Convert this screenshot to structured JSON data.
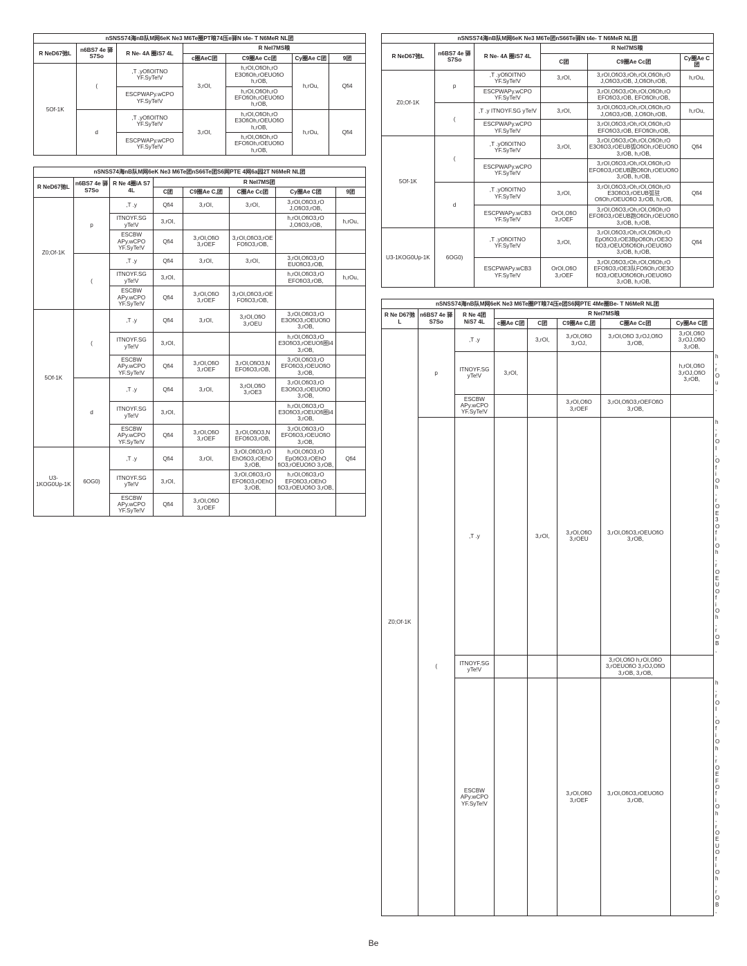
{
  "page_number": "Be",
  "colors": {
    "ink": "#231f20",
    "paper": "#ffffff"
  },
  "tables": {
    "t1": {
      "title": "nSNSS74海nB队M网6eK Ne3 M6Te圈PT㫰74压e驿N t4e- T N6MeR  NL团",
      "cols": [
        "R NeD67弛L",
        "n6BS7 4e\n驿S7So",
        "R Ne- 4A\n圈iS7 4L",
        "R  NeI7MS㫰"
      ],
      "sub": [
        "c圈AeC团",
        "C9圈Ae Cc团",
        "Cy圈Ae C团",
        "9团"
      ],
      "rows": [
        {
          "k": "5Of-1K",
          "g": "(",
          "cells": [
            [
              ",T .yOfiOITNO\nYF.SyTe!V",
              "3,rOI,",
              "h,rOI,OfiOh,rO E3OfiOh,rOEUOfiO\nh,rOB,",
              "h,rOu,",
              "Qfi4"
            ],
            [
              "ESCPWAPy.wCPO\nYF.SyTe!V",
              "",
              "h,rOI,OfiOh,rO EFOfiOh,rOEUOfiO\nh,rOB,",
              "",
              ""
            ]
          ]
        },
        {
          "k": "",
          "g": "d",
          "cells": [
            [
              ",T .yOfiOITNO\nYF.SyTe!V",
              "3,rOI,",
              "h,rOI,OfiOh,rO E3OfiOh,rOEUOfiO\nh,rOB,",
              "h,rOu,",
              "Qfi4"
            ],
            [
              "ESCPWAPy.wCPO\nYF.SyTe!V",
              "",
              "h,rOI,OfiOh,rO EFOfiOh,rOEUOfiO\nh,rOB,",
              "",
              ""
            ]
          ]
        }
      ]
    },
    "t2": {
      "title": "nSNSS74海nB队M网6eK Ne3 M6Te团nS66Te团S6网PTE 4网6a园2T N6MeR  NL团",
      "hdr": [
        "R NeD67弛L",
        "n6BS7 4e\n驿S7So",
        "R Ne\n4圈iA S7 4L",
        "R  NeI7MS团"
      ],
      "sub": [
        "C团",
        "C9圈Ae C,团",
        "C圈Ae Cc团",
        "Cy圈Ae C团",
        "9团"
      ],
      "groups": [
        {
          "k": "Z0;Of-1K",
          "g": "p",
          "rows": [
            [
              ",T .y",
              "Qfi4",
              "3,rOI,",
              "3,rOI,",
              "3,rOI,OfiO3,rO J,OfiO3,rOB,",
              ""
            ],
            [
              "ITNOYF.SG\nyTe!V",
              "3,rOI,",
              "",
              "",
              "h,rOI,OfiO3,rO J,OfiO3,rOB,",
              "h,rOu,"
            ],
            [
              "ESCBW\nAPy.wCPO\nYF.SyTe!V",
              "Qfi4",
              "3,rOI,OfiO 3,rOEF",
              "3,rOI,OfiO3,rOEFOfiO3,rOB,",
              "",
              ""
            ]
          ]
        },
        {
          "k": "",
          "g": "(",
          "rows": [
            [
              ",T .y",
              "Qfi4",
              "3,rOI,",
              "3,rOI,",
              "3,rOI,OfiO3,rO EUOfiO3,rOB,",
              ""
            ],
            [
              "ITNOYF.SG\nyTe!V",
              "3,rOI,",
              "",
              "",
              "h,rOI,OfiO3,rO EFOfiO3,rOB,",
              "h,rOu,"
            ],
            [
              "ESCBW\nAPy.wCPO\nYF.SyTe!V",
              "Qfi4",
              "3,rOI,OfiO 3,rOEF",
              "3,rOI,OfiO3,rOEFOfiO3,rOB,",
              "",
              ""
            ]
          ]
        },
        {
          "k": "5Of-1K",
          "g": "(",
          "rows": [
            [
              ",T .y",
              "Qfi4",
              "3,rOI,",
              "3,rOI,OfiO 3,rOEU",
              "3,rOI,OfiO3,rO E3OfiO3,rOEUOfiO\n3,rOB,",
              ""
            ],
            [
              "ITNOYF.SG\nyTe!V",
              "3,rOI,",
              "",
              "",
              "h,rOI,OfiO3,rO E3OfiO3,rOEUOfi圈i4\n3,rOB,",
              ""
            ],
            [
              "ESCBW\nAPy.wCPO\nYF.SyTe!V",
              "Qfi4",
              "3,rOI,OfiO 3,rOEF",
              "3,rOI,OfiO3,N EFOfiO3,rOB,",
              "3,rOI,OfiO3,rO EFOfiO3,rOEUOfiO\n3,rOB,",
              ""
            ]
          ]
        },
        {
          "k": "",
          "g": "d",
          "rows": [
            [
              ",T .y",
              "Qfi4",
              "3,rOI,",
              "3,rOI,OfiO 3,rOE3",
              "3,rOI,OfiO3,rO E3OfiO3,rOEUOfiO\n3,rOB,",
              ""
            ],
            [
              "ITNOYF.SG\nyTe!V",
              "3,rOI,",
              "",
              "",
              "h,rOI,OfiO3,rO E3OfiO3,rOEUOfi圈i4\n3,rOB,",
              ""
            ],
            [
              "ESCBW\nAPy.wCPO\nYF.SyTe!V",
              "Qfi4",
              "3,rOI,OfiO 3,rOEF",
              "3,rOI,OfiO3,N EFOfiO3,rOB,",
              "3,rOI,OfiO3,rO EFOfiO3,rOEUOfiO\n3,rOB,",
              ""
            ]
          ]
        },
        {
          "k": "U3-1KOG0Up-1K",
          "g": "6OG0)",
          "rows": [
            [
              ",T .y",
              "Qfi4",
              "3,rOI,",
              "3,rOI,OfiO3,rO EhOfiO3,rOEhO\n3,rOB,",
              "h,rOI,OfiO3,rO EpOfiO3,rOEhO\nfiO3,rOEUOfiO\n3,rOB,",
              "Qfi4"
            ],
            [
              "ITNOYF.SG\nyTe!V",
              "3,rOI,",
              "",
              "3,rOI,OfiO3,rO EFOfiO3,rOEhO\n3,rOB,",
              "h,rOI,OfiO3,rO EFOfiO3,rOEhO\nfiO3,rOEUOfiO\n3,rOB,",
              ""
            ],
            [
              "ESCBW\nAPy.wCPO\nYF.SyTe!V",
              "Qfi4",
              "3,rOI,OfiO 3,rOEF",
              "",
              "",
              ""
            ]
          ]
        }
      ]
    },
    "t3": {
      "title": "nSNSS74海nB队M网6eK Ne3 M6Te团nS66Te驿N t4e- T N6MeR  NL团",
      "hdr": [
        "R NeD67弛L",
        "n6BS7 4e\n驿S7So",
        "R Ne- 4A\n圈iS7 4L",
        "R  NeI7MS㫰"
      ],
      "sub": [
        "C团",
        "C9圈Ae Cc团",
        "Cy圈Ae C团",
        "9团"
      ],
      "groups": [
        {
          "k": "Z0;Of-1K",
          "g": "p",
          "rows": [
            [
              ",T .yOfiOITNO\nYF.SyTe!V",
              "3,rOI,",
              "3,rOI,OfiO3,rOh,rOI,OfiOh,rO J,OfiO3,rOB, J,OfiOh,rOB,",
              "h,rOu,"
            ],
            [
              "ESCPWAPy.wCPO\nYF.SyTe!V",
              "",
              "3,rOI,OfiO3,rOh,rOI,OfiOh,rO EFOfiO3,rOB, EFOfiOh,rOB,",
              ""
            ]
          ]
        },
        {
          "k": "",
          "g": "(",
          "rows": [
            [
              ",T .y\nITNOYF.SG\nyTe!V",
              "3,rOI,",
              "3,rOI,OfiO3,rOh,rOI,OfiOh,rO J,OfiO3,rOB, J,OfiOh,rOB,",
              "h,rOu,"
            ],
            [
              "ESCPWAPy.wCPO\nYF.SyTe!V",
              "",
              "3,rOI,OfiO3,rOh,rOI,OfiOh,rO EFOfiO3,rOB, EFOfiOh,rOB,",
              ""
            ]
          ]
        },
        {
          "k": "5Of-1K",
          "g": "(",
          "rows": [
            [
              ",T .yOfiOITNO\nYF.SyTe!V",
              "3,rOI,",
              "3,rOI,OfiO3,rOh,rOI,OfiOh,rO E3OfiO3,rOEUB弧OfiOh,rOEUOfiO\n3,rOB,       h,rOB,",
              "Qfi4"
            ],
            [
              "ESCPWAPy.wCPO\nYF.SyTe!V",
              "",
              "3,rOI,OfiO3,rOh,rOI,OfiOh,rO EFOfiO3,rOEUB跑OfiOh,rOEUOfiO\n3,rOB,       h,rOB,",
              ""
            ]
          ]
        },
        {
          "k": "",
          "g": "d",
          "rows": [
            [
              ",T .yOfiOITNO\nYF.SyTe!V",
              "3,rOI,",
              "3,rOI,OfiO3,rOh,rOI,OfiOh,rO E3OfiO3,rOEUB弧驻OfiOh,rOEUOfiO\n3,rOB,       h,rOB,",
              "Qfi4"
            ],
            [
              "ESCPWAPy.wCB3\nYF.SyTe!V",
              "OrOI,OfiO 3,rOEF",
              "3,rOI,OfiO3,rOh,rOI,OfiOh,rO EFOfiO3,rOEUB跑OfiOh,rOEUOfiO\n3,rOB,       h,rOB,",
              ""
            ]
          ]
        },
        {
          "k": "U3-1KOG0Up-1K",
          "g": "6OG0)",
          "rows": [
            [
              ",T .yOfiOITNO\nYF.SyTe!V",
              "3,rOI,",
              "3,rOI,OfiO3,rOh,rOI,OfiOh,rO EpOfiO3,rOE3BpOfiOh,rOE3O\nfiO3,rOEUOfiOfiOh,rOEUOfiO\n3,rOB,       h,rOB,",
              "Qfi4"
            ],
            [
              "ESCPWAPy.wCB3\nYF.SyTe!V",
              "OrOI,OfiO 3,rOEF",
              "3,rOI,OfiO3,rOh,rOI,OfiOh,rO EFOfiO3,rOE3队FOfiOh,rOE3O\nfiO3,rOEUOfiOfiOh,rOEUOfiO\n3,rOB,       h,rOB,",
              ""
            ]
          ]
        }
      ]
    },
    "t4": {
      "title": "nSNSS74海nB队M网6eK Ne3 M6Te圈PT㫰74压e团S6网PTE 4Me圈Be- T N6MeR  NL团",
      "hdr": [
        "R Ne\nD67弛L",
        "n6BS7 4e\n驿S7So",
        "R Ne\n4团\nNiS7 4L",
        "R  NeI7MS㫰"
      ],
      "sub": [
        "c圈Ae C团",
        "C团",
        "C9圈Ae C,团",
        "C圈Ae Cc团",
        "Cy圈Ae C团",
        "9团"
      ],
      "groups": [
        {
          "k": "Z0;Of-1K",
          "g": "p",
          "rows": [
            [
              ",T .y",
              "",
              "3,rOI,",
              "3,rOI,OfiO 3,rOJ,",
              "3,rOI,OfiO 3,rOJ,OfiO 3,rOB,",
              "3,rOI,OfiO 3,rOJ,OfiO 3,rOB,",
              ""
            ],
            [
              "ITNOYF.SG\nyTe!V",
              "3,rOI,",
              "",
              "",
              "",
              "h,rOI,OfiO 3,rOJ,OfiO 3,rOB,",
              "h,rOu,"
            ],
            [
              "ESCBW\nAPy.wCPO\nYF.SyTe!V",
              "",
              "",
              "3,rOI,OfiO 3,rOEF",
              "3,rOI,OfiO3,rOEFOfiO\n3,rOB,",
              "",
              ""
            ]
          ]
        },
        {
          "k": "",
          "g": "(",
          "rows": [
            [
              ",T .y",
              "",
              "3,rOI,",
              "3,rOI,OfiO 3,rOEU",
              "3,rOI,OfiO3,rOEUOfiO\n3,rOB,",
              "",
              "h,rOI,OfiO h,rOE3OfiO h,rOEUOfiO h,rOB,"
            ],
            [
              "ITNOYF.SG\nyTe!V",
              "",
              "",
              "",
              "3,rOI,OfiO h,rOI,OfiO 3,rOEUOfiO 3,rOJ,OfiO\n3,rOB,    3,rOB,",
              "",
              ""
            ],
            [
              "ESCBW\nAPy.wCPO\nYF.SyTe!V",
              "",
              "",
              "3,rOI,OfiO 3,rOEF",
              "3,rOI,OfiO3,rOEUOfiO\n3,rOB,",
              "",
              "h,rOI,OfiO h,rOEFOfiO h,rOEUOfiO h,rOB,"
            ]
          ]
        }
      ]
    }
  }
}
